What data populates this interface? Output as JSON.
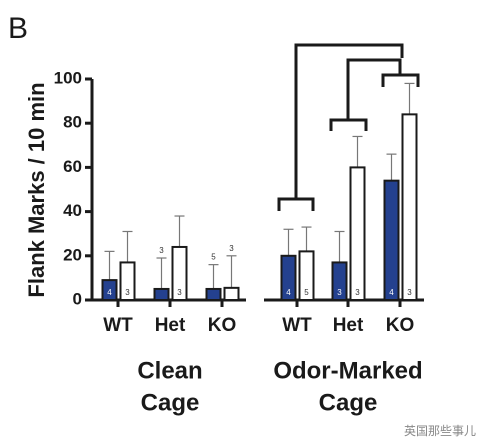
{
  "panel_label": "B",
  "chart_data": {
    "type": "bar",
    "y_label": "Flank Marks / 10 min",
    "categories": [
      "WT",
      "Het",
      "KO",
      "WT",
      "Het",
      "KO"
    ],
    "groups": [
      [
        "Clean",
        "Cage"
      ],
      [
        "Odor-Marked",
        "Cage"
      ]
    ],
    "ylim": [
      0,
      100
    ],
    "yticks": [
      0,
      20,
      40,
      60,
      80,
      100
    ],
    "series": [
      {
        "color": "#24418f",
        "values": [
          9,
          5,
          5,
          20,
          17,
          54
        ],
        "errors": [
          13,
          14,
          11,
          12,
          14,
          12
        ],
        "n": [
          4,
          3,
          5,
          4,
          3,
          4
        ]
      },
      {
        "color": "#ffffff",
        "values": [
          17,
          24,
          5.5,
          22,
          60,
          84
        ],
        "errors": [
          14,
          14,
          14.5,
          11,
          14,
          14
        ],
        "n": [
          3,
          3,
          3,
          5,
          3,
          3
        ]
      }
    ]
  },
  "watermark": "英国那些事儿"
}
